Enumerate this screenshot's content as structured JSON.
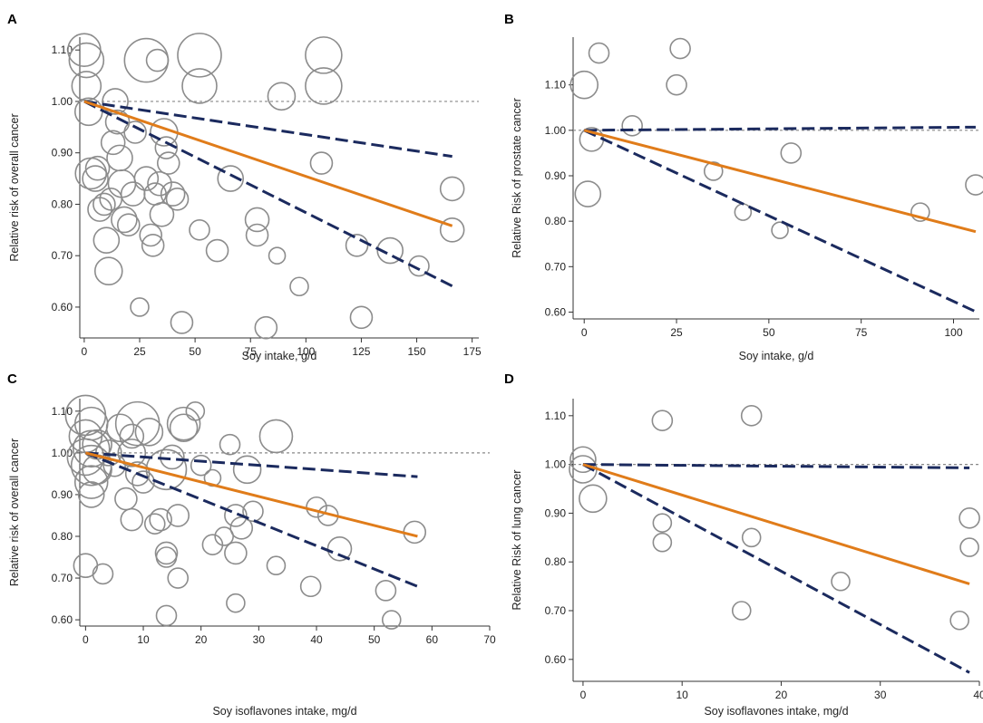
{
  "figure": {
    "panels": [
      "A",
      "B",
      "C",
      "D"
    ]
  },
  "colors": {
    "mid": "#e07c1a",
    "ci": "#1b2a5e",
    "bubble": "#8c8c8c",
    "ref": "#888888"
  },
  "chart_data": [
    {
      "label": "A",
      "type": "scatter",
      "xlabel": "Soy intake, g/d",
      "ylabel": "Relative risk of overall cancer",
      "xlim": [
        -2,
        178
      ],
      "ylim": [
        0.54,
        1.125
      ],
      "xticks": [
        0,
        25,
        50,
        75,
        100,
        125,
        150,
        175
      ],
      "yticks": [
        0.6,
        0.7,
        0.8,
        0.9,
        1.0,
        1.1
      ],
      "ytick_labels": [
        "0.60",
        "0.70",
        "0.80",
        "0.90",
        "1.00",
        "1.10"
      ],
      "reference_line": 1.0,
      "fit": {
        "estimate": [
          [
            0,
            1.0
          ],
          [
            166,
            0.758
          ]
        ],
        "upper": [
          [
            0,
            1.0
          ],
          [
            166,
            0.893
          ]
        ],
        "lower": [
          [
            0,
            1.0
          ],
          [
            166,
            0.641
          ]
        ]
      },
      "points": [
        {
          "x": 0,
          "y": 1.1,
          "w": 0.7
        },
        {
          "x": 1,
          "y": 1.08,
          "w": 0.75
        },
        {
          "x": 1,
          "y": 1.03,
          "w": 0.6
        },
        {
          "x": 2,
          "y": 0.98,
          "w": 0.55
        },
        {
          "x": 3,
          "y": 0.86,
          "w": 0.65
        },
        {
          "x": 5,
          "y": 0.85,
          "w": 0.5
        },
        {
          "x": 6,
          "y": 0.87,
          "w": 0.45
        },
        {
          "x": 7,
          "y": 0.79,
          "w": 0.45
        },
        {
          "x": 9,
          "y": 0.8,
          "w": 0.4
        },
        {
          "x": 10,
          "y": 0.73,
          "w": 0.5
        },
        {
          "x": 11,
          "y": 0.67,
          "w": 0.55
        },
        {
          "x": 12,
          "y": 0.81,
          "w": 0.4
        },
        {
          "x": 13,
          "y": 0.92,
          "w": 0.45
        },
        {
          "x": 14,
          "y": 1.0,
          "w": 0.5
        },
        {
          "x": 15,
          "y": 0.96,
          "w": 0.45
        },
        {
          "x": 16,
          "y": 0.89,
          "w": 0.5
        },
        {
          "x": 17,
          "y": 0.84,
          "w": 0.55
        },
        {
          "x": 18,
          "y": 0.77,
          "w": 0.5
        },
        {
          "x": 20,
          "y": 0.76,
          "w": 0.4
        },
        {
          "x": 22,
          "y": 0.82,
          "w": 0.45
        },
        {
          "x": 23,
          "y": 0.94,
          "w": 0.4
        },
        {
          "x": 25,
          "y": 0.6,
          "w": 0.3
        },
        {
          "x": 28,
          "y": 1.08,
          "w": 1.0
        },
        {
          "x": 28,
          "y": 0.85,
          "w": 0.45
        },
        {
          "x": 30,
          "y": 0.74,
          "w": 0.4
        },
        {
          "x": 31,
          "y": 0.72,
          "w": 0.4
        },
        {
          "x": 32,
          "y": 0.82,
          "w": 0.4
        },
        {
          "x": 33,
          "y": 1.08,
          "w": 0.4
        },
        {
          "x": 34,
          "y": 0.84,
          "w": 0.45
        },
        {
          "x": 35,
          "y": 0.78,
          "w": 0.45
        },
        {
          "x": 36,
          "y": 0.94,
          "w": 0.55
        },
        {
          "x": 37,
          "y": 0.91,
          "w": 0.4
        },
        {
          "x": 38,
          "y": 0.88,
          "w": 0.4
        },
        {
          "x": 40,
          "y": 0.82,
          "w": 0.45
        },
        {
          "x": 42,
          "y": 0.81,
          "w": 0.4
        },
        {
          "x": 44,
          "y": 0.57,
          "w": 0.4
        },
        {
          "x": 52,
          "y": 1.09,
          "w": 1.0
        },
        {
          "x": 52,
          "y": 1.03,
          "w": 0.75
        },
        {
          "x": 52,
          "y": 0.75,
          "w": 0.35
        },
        {
          "x": 60,
          "y": 0.71,
          "w": 0.4
        },
        {
          "x": 66,
          "y": 0.85,
          "w": 0.5
        },
        {
          "x": 78,
          "y": 0.77,
          "w": 0.45
        },
        {
          "x": 78,
          "y": 0.74,
          "w": 0.4
        },
        {
          "x": 82,
          "y": 0.56,
          "w": 0.4
        },
        {
          "x": 87,
          "y": 0.7,
          "w": 0.25
        },
        {
          "x": 89,
          "y": 1.01,
          "w": 0.55
        },
        {
          "x": 97,
          "y": 0.64,
          "w": 0.3
        },
        {
          "x": 107,
          "y": 0.88,
          "w": 0.4
        },
        {
          "x": 108,
          "y": 1.09,
          "w": 0.8
        },
        {
          "x": 108,
          "y": 1.03,
          "w": 0.8
        },
        {
          "x": 123,
          "y": 0.72,
          "w": 0.4
        },
        {
          "x": 125,
          "y": 0.58,
          "w": 0.4
        },
        {
          "x": 138,
          "y": 0.71,
          "w": 0.5
        },
        {
          "x": 151,
          "y": 0.68,
          "w": 0.35
        },
        {
          "x": 166,
          "y": 0.83,
          "w": 0.45
        },
        {
          "x": 166,
          "y": 0.75,
          "w": 0.45
        }
      ]
    },
    {
      "label": "B",
      "type": "scatter",
      "xlabel": "Soy intake, g/d",
      "ylabel": "Relative Risk of prostate cancer",
      "xlim": [
        -3,
        107
      ],
      "ylim": [
        0.585,
        1.205
      ],
      "xticks": [
        0,
        25,
        50,
        75,
        100
      ],
      "yticks": [
        0.6,
        0.7,
        0.8,
        0.9,
        1.0,
        1.1
      ],
      "ytick_labels": [
        "0.60",
        "0.70",
        "0.80",
        "0.90",
        "1.00",
        "1.10"
      ],
      "reference_line": 1.0,
      "fit": {
        "estimate": [
          [
            0,
            1.0
          ],
          [
            106,
            0.777
          ]
        ],
        "upper": [
          [
            0,
            1.0
          ],
          [
            106,
            1.007
          ]
        ],
        "lower": [
          [
            0,
            1.0
          ],
          [
            106,
            0.601
          ]
        ]
      },
      "points": [
        {
          "x": 0,
          "y": 1.1,
          "w": 0.55
        },
        {
          "x": 1,
          "y": 0.86,
          "w": 0.5
        },
        {
          "x": 2,
          "y": 0.98,
          "w": 0.45
        },
        {
          "x": 4,
          "y": 1.17,
          "w": 0.35
        },
        {
          "x": 13,
          "y": 1.01,
          "w": 0.35
        },
        {
          "x": 25,
          "y": 1.1,
          "w": 0.35
        },
        {
          "x": 26,
          "y": 1.18,
          "w": 0.35
        },
        {
          "x": 35,
          "y": 0.91,
          "w": 0.3
        },
        {
          "x": 43,
          "y": 0.82,
          "w": 0.25
        },
        {
          "x": 53,
          "y": 0.78,
          "w": 0.25
        },
        {
          "x": 56,
          "y": 0.95,
          "w": 0.35
        },
        {
          "x": 91,
          "y": 0.82,
          "w": 0.3
        },
        {
          "x": 106,
          "y": 0.88,
          "w": 0.35
        }
      ]
    },
    {
      "label": "C",
      "type": "scatter",
      "xlabel": "Soy isoflavones intake, mg/d",
      "ylabel": "Relative risk of overall cancer",
      "xlim": [
        -1,
        70
      ],
      "ylim": [
        0.585,
        1.13
      ],
      "xticks": [
        0,
        10,
        20,
        30,
        40,
        50,
        60,
        70
      ],
      "yticks": [
        0.6,
        0.7,
        0.8,
        0.9,
        1.0,
        1.1
      ],
      "ytick_labels": [
        "0.60",
        "0.70",
        "0.80",
        "0.90",
        "1.00",
        "1.10"
      ],
      "reference_line": 1.0,
      "fit": {
        "estimate": [
          [
            0,
            1.0
          ],
          [
            57.5,
            0.8
          ]
        ],
        "upper": [
          [
            0,
            1.0
          ],
          [
            57.5,
            0.943
          ]
        ],
        "lower": [
          [
            0,
            1.0
          ],
          [
            57.5,
            0.68
          ]
        ]
      },
      "points": [
        {
          "x": 0,
          "y": 1.09,
          "w": 0.9
        },
        {
          "x": 0,
          "y": 1.04,
          "w": 0.7
        },
        {
          "x": 0,
          "y": 0.99,
          "w": 0.8
        },
        {
          "x": 0,
          "y": 0.73,
          "w": 0.45
        },
        {
          "x": 1,
          "y": 1.07,
          "w": 0.7
        },
        {
          "x": 1,
          "y": 1.01,
          "w": 0.8
        },
        {
          "x": 1,
          "y": 0.97,
          "w": 0.9
        },
        {
          "x": 1,
          "y": 0.93,
          "w": 0.7
        },
        {
          "x": 1,
          "y": 0.9,
          "w": 0.5
        },
        {
          "x": 2,
          "y": 1.02,
          "w": 0.6
        },
        {
          "x": 2,
          "y": 0.96,
          "w": 0.6
        },
        {
          "x": 3,
          "y": 0.71,
          "w": 0.35
        },
        {
          "x": 4,
          "y": 1.0,
          "w": 0.5
        },
        {
          "x": 5,
          "y": 0.97,
          "w": 0.4
        },
        {
          "x": 6,
          "y": 1.06,
          "w": 0.55
        },
        {
          "x": 7,
          "y": 0.89,
          "w": 0.4
        },
        {
          "x": 8,
          "y": 1.04,
          "w": 0.45
        },
        {
          "x": 8,
          "y": 1.0,
          "w": 0.55
        },
        {
          "x": 8,
          "y": 0.84,
          "w": 0.4
        },
        {
          "x": 9,
          "y": 1.07,
          "w": 1.0
        },
        {
          "x": 9,
          "y": 0.95,
          "w": 0.45
        },
        {
          "x": 10,
          "y": 0.93,
          "w": 0.4
        },
        {
          "x": 11,
          "y": 1.05,
          "w": 0.55
        },
        {
          "x": 12,
          "y": 0.83,
          "w": 0.35
        },
        {
          "x": 13,
          "y": 0.84,
          "w": 0.4
        },
        {
          "x": 14,
          "y": 0.96,
          "w": 0.9
        },
        {
          "x": 14,
          "y": 0.76,
          "w": 0.4
        },
        {
          "x": 14,
          "y": 0.75,
          "w": 0.35
        },
        {
          "x": 14,
          "y": 0.61,
          "w": 0.35
        },
        {
          "x": 15,
          "y": 0.99,
          "w": 0.45
        },
        {
          "x": 16,
          "y": 0.85,
          "w": 0.4
        },
        {
          "x": 16,
          "y": 0.7,
          "w": 0.35
        },
        {
          "x": 17,
          "y": 1.07,
          "w": 0.7
        },
        {
          "x": 17,
          "y": 1.06,
          "w": 0.55
        },
        {
          "x": 19,
          "y": 1.1,
          "w": 0.3
        },
        {
          "x": 20,
          "y": 0.97,
          "w": 0.35
        },
        {
          "x": 22,
          "y": 0.94,
          "w": 0.25
        },
        {
          "x": 22,
          "y": 0.78,
          "w": 0.35
        },
        {
          "x": 24,
          "y": 0.8,
          "w": 0.3
        },
        {
          "x": 25,
          "y": 1.02,
          "w": 0.35
        },
        {
          "x": 26,
          "y": 0.85,
          "w": 0.4
        },
        {
          "x": 26,
          "y": 0.76,
          "w": 0.4
        },
        {
          "x": 26,
          "y": 0.64,
          "w": 0.3
        },
        {
          "x": 27,
          "y": 0.82,
          "w": 0.4
        },
        {
          "x": 28,
          "y": 0.96,
          "w": 0.55
        },
        {
          "x": 29,
          "y": 0.86,
          "w": 0.35
        },
        {
          "x": 33,
          "y": 1.04,
          "w": 0.7
        },
        {
          "x": 33,
          "y": 0.73,
          "w": 0.3
        },
        {
          "x": 39,
          "y": 0.68,
          "w": 0.35
        },
        {
          "x": 40,
          "y": 0.87,
          "w": 0.35
        },
        {
          "x": 42,
          "y": 0.85,
          "w": 0.35
        },
        {
          "x": 44,
          "y": 0.77,
          "w": 0.45
        },
        {
          "x": 52,
          "y": 0.67,
          "w": 0.35
        },
        {
          "x": 53,
          "y": 0.6,
          "w": 0.3
        },
        {
          "x": 57,
          "y": 0.81,
          "w": 0.4
        }
      ]
    },
    {
      "label": "D",
      "type": "scatter",
      "xlabel": "Soy isoflavones intake, mg/d",
      "ylabel": "Relative Risk of lung cancer",
      "xlim": [
        -1,
        40
      ],
      "ylim": [
        0.555,
        1.135
      ],
      "xticks": [
        0,
        10,
        20,
        30,
        40
      ],
      "yticks": [
        0.6,
        0.7,
        0.8,
        0.9,
        1.0,
        1.1
      ],
      "ytick_labels": [
        "0.60",
        "0.70",
        "0.80",
        "0.90",
        "1.00",
        "1.10"
      ],
      "reference_line": 1.0,
      "fit": {
        "estimate": [
          [
            0,
            1.0
          ],
          [
            39,
            0.755
          ]
        ],
        "upper": [
          [
            0,
            1.0
          ],
          [
            39,
            0.993
          ]
        ],
        "lower": [
          [
            0,
            1.0
          ],
          [
            39,
            0.573
          ]
        ]
      },
      "points": [
        {
          "x": 0,
          "y": 1.01,
          "w": 0.5
        },
        {
          "x": 0,
          "y": 0.99,
          "w": 0.55
        },
        {
          "x": 1,
          "y": 0.93,
          "w": 0.55
        },
        {
          "x": 8,
          "y": 1.09,
          "w": 0.35
        },
        {
          "x": 8,
          "y": 0.88,
          "w": 0.3
        },
        {
          "x": 8,
          "y": 0.84,
          "w": 0.3
        },
        {
          "x": 16,
          "y": 0.7,
          "w": 0.3
        },
        {
          "x": 17,
          "y": 1.1,
          "w": 0.35
        },
        {
          "x": 17,
          "y": 0.85,
          "w": 0.3
        },
        {
          "x": 26,
          "y": 0.76,
          "w": 0.3
        },
        {
          "x": 38,
          "y": 0.68,
          "w": 0.3
        },
        {
          "x": 39,
          "y": 0.89,
          "w": 0.35
        },
        {
          "x": 39,
          "y": 0.83,
          "w": 0.3
        }
      ]
    }
  ]
}
